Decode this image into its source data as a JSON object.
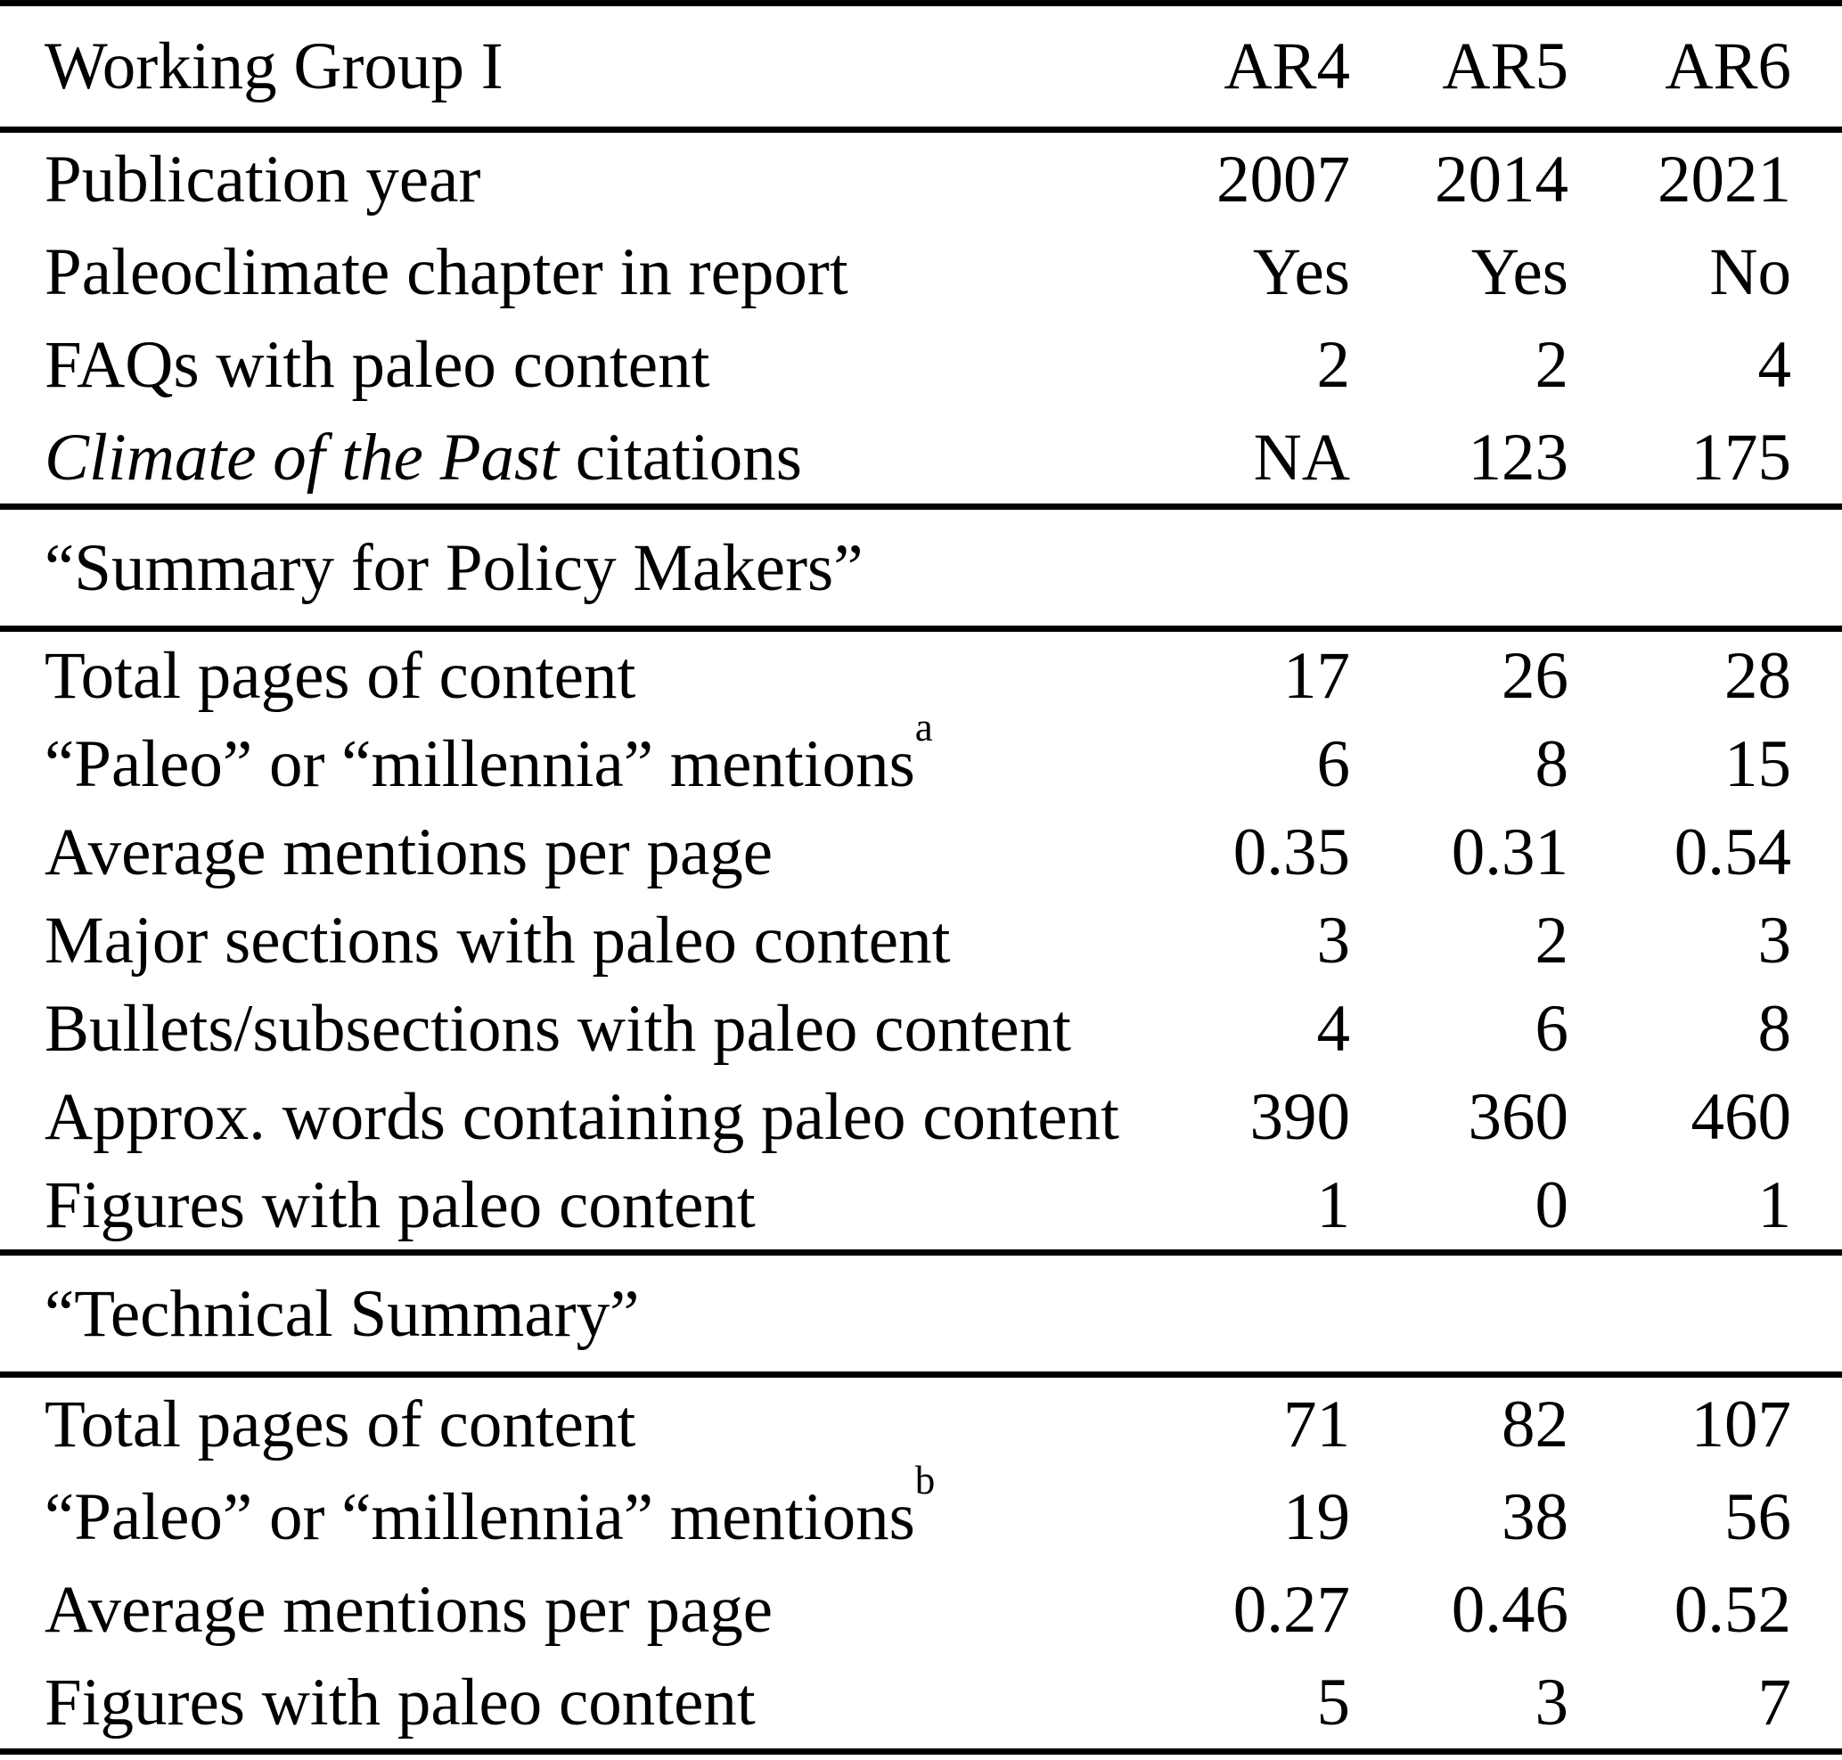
{
  "page": {
    "background_color": "#ffffff",
    "text_color": "#000000",
    "rule_color": "#000000"
  },
  "table": {
    "header": {
      "label": "Working Group I",
      "columns": [
        "AR4",
        "AR5",
        "AR6"
      ]
    },
    "sections": [
      {
        "title": null,
        "rows": [
          {
            "label": "Publication year",
            "values": [
              "2007",
              "2014",
              "2021"
            ]
          },
          {
            "label": "Paleoclimate chapter in report",
            "values": [
              "Yes",
              "Yes",
              "No"
            ]
          },
          {
            "label": "FAQs with paleo content",
            "values": [
              "2",
              "2",
              "4"
            ]
          },
          {
            "label_italic": "Climate of the Past",
            "label_rest": " citations",
            "values": [
              "NA",
              "123",
              "175"
            ]
          }
        ]
      },
      {
        "title": "“Summary for Policy Makers”",
        "rows": [
          {
            "label": "Total pages of content",
            "values": [
              "17",
              "26",
              "28"
            ]
          },
          {
            "label": "“Paleo” or “millennia” mentions",
            "note_marker": "a",
            "values": [
              "6",
              "8",
              "15"
            ]
          },
          {
            "label": "Average mentions per page",
            "values": [
              "0.35",
              "0.31",
              "0.54"
            ]
          },
          {
            "label": "Major sections with paleo content",
            "values": [
              "3",
              "2",
              "3"
            ]
          },
          {
            "label": "Bullets/subsections with paleo content",
            "values": [
              "4",
              "6",
              "8"
            ]
          },
          {
            "label": "Approx. words containing paleo content",
            "values": [
              "390",
              "360",
              "460"
            ]
          },
          {
            "label": "Figures with paleo content",
            "values": [
              "1",
              "0",
              "1"
            ]
          }
        ]
      },
      {
        "title": "“Technical Summary”",
        "rows": [
          {
            "label": "Total pages of content",
            "values": [
              "71",
              "82",
              "107"
            ]
          },
          {
            "label": "“Paleo” or “millennia” mentions",
            "note_marker": "b",
            "values": [
              "19",
              "38",
              "56"
            ]
          },
          {
            "label": "Average mentions per page",
            "values": [
              "0.27",
              "0.46",
              "0.52"
            ]
          },
          {
            "label": "Figures with paleo content",
            "values": [
              "5",
              "3",
              "7"
            ]
          }
        ]
      }
    ]
  }
}
